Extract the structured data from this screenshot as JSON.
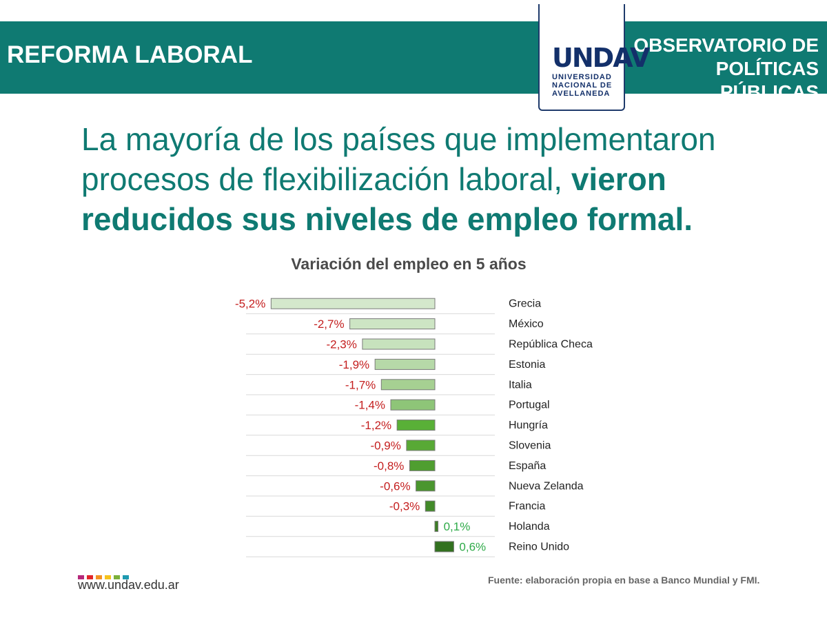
{
  "header": {
    "left_title": "REFORMA LABORAL",
    "right_title_line1": "OBSERVATORIO DE",
    "right_title_line2": "POLÍTICAS PÚBLICAS",
    "logo_mark": "UNDAV",
    "logo_line1": "UNIVERSIDAD",
    "logo_line2": "NACIONAL DE",
    "logo_line3": "AVELLANEDA"
  },
  "headline": {
    "part1": "La mayoría de los países que implementaron procesos de flexibilización laboral, ",
    "part2": "vieron reducidos sus niveles de empleo formal."
  },
  "footer": {
    "source": "Fuente: elaboración propia en base a Banco Mundial y FMI.",
    "website": "www.undav.edu.ar",
    "dot_colors": [
      "#b5287a",
      "#e2262a",
      "#f39324",
      "#f5c31c",
      "#7bb03a",
      "#1e9ab0"
    ]
  },
  "chart_data": {
    "type": "bar",
    "orientation": "horizontal",
    "title": "Variación del empleo en 5 años",
    "xlabel": "",
    "ylabel": "",
    "unit": "%",
    "categories": [
      "Grecia",
      "México",
      "República Checa",
      "Estonia",
      "Italia",
      "Portugal",
      "Hungría",
      "Slovenia",
      "España",
      "Nueva Zelanda",
      "Francia",
      "Holanda",
      "Reino Unido"
    ],
    "values": [
      -5.2,
      -2.7,
      -2.3,
      -1.9,
      -1.7,
      -1.4,
      -1.2,
      -0.9,
      -0.8,
      -0.6,
      -0.3,
      0.1,
      0.6
    ],
    "value_labels": [
      "-5,2%",
      "-2,7%",
      "-2,3%",
      "-1,9%",
      "-1,7%",
      "-1,4%",
      "-1,2%",
      "-0,9%",
      "-0,8%",
      "-0,6%",
      "-0,3%",
      "0,1%",
      "0,6%"
    ],
    "bar_colors": [
      "#d4e8cc",
      "#cde5c4",
      "#c7e2bd",
      "#b6d9a8",
      "#a6d092",
      "#8ec578",
      "#59b037",
      "#58a935",
      "#4f9e30",
      "#4a962e",
      "#428a29",
      "#3c7f25",
      "#32711f"
    ],
    "negative_label_color": "#c41e1e",
    "positive_label_color": "#2eaa48",
    "grid": false
  }
}
